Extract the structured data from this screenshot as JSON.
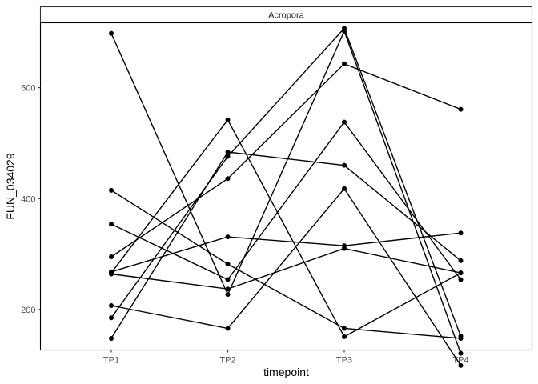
{
  "chart_data": {
    "type": "line",
    "facet_label": "Acropora",
    "xlabel": "timepoint",
    "ylabel": "FUN_034029",
    "categories": [
      "TP1",
      "TP2",
      "TP3",
      "TP4"
    ],
    "ylim": [
      127,
      717
    ],
    "y_ticks": [
      200,
      400,
      600
    ],
    "grid": false,
    "series": [
      {
        "values": [
          698,
          227,
          702,
          121
        ]
      },
      {
        "values": [
          415,
          282,
          166,
          148
        ]
      },
      {
        "values": [
          354,
          254,
          538,
          254
        ]
      },
      {
        "values": [
          295,
          436,
          643,
          561
        ]
      },
      {
        "values": [
          268,
          331,
          315,
          338
        ]
      },
      {
        "values": [
          266,
          542,
          151,
          266
        ]
      },
      {
        "values": [
          264,
          237,
          310,
          266
        ]
      },
      {
        "values": [
          207,
          166,
          418,
          99
        ]
      },
      {
        "values": [
          185,
          476,
          707,
          152
        ]
      },
      {
        "values": [
          148,
          484,
          460,
          288
        ]
      }
    ],
    "colors": {
      "line": "#000000",
      "point": "#000000"
    }
  }
}
